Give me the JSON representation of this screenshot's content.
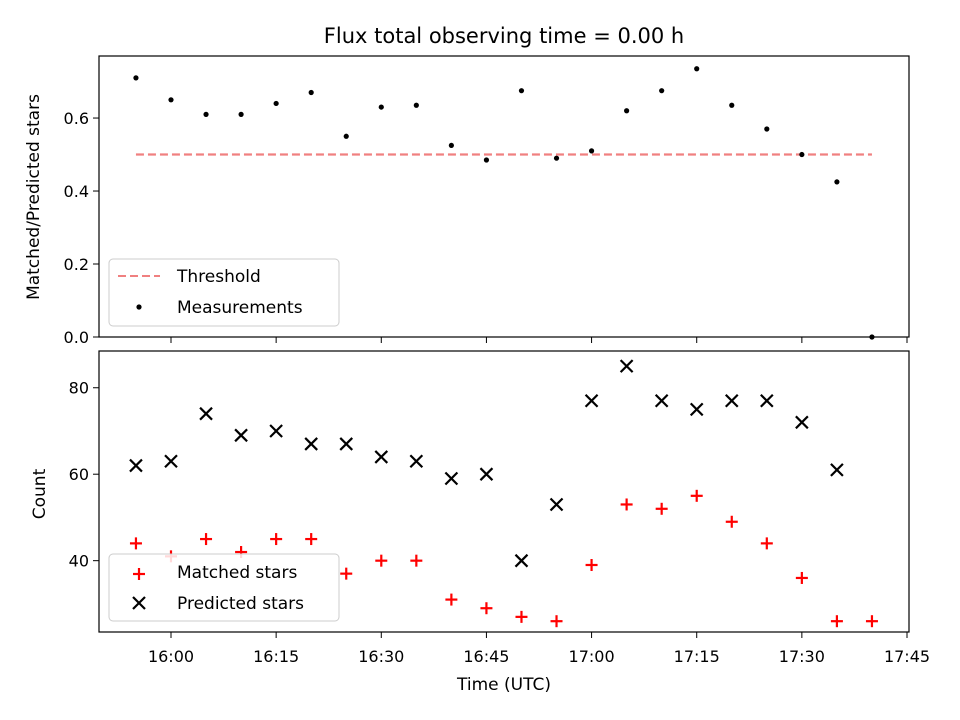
{
  "chart_data": [
    {
      "type": "scatter",
      "title": "Flux total observing time = 0.00 h",
      "xlabel": "",
      "ylabel": "Matched/Predicted stars",
      "x_ticks": [
        "16:00",
        "16:15",
        "16:30",
        "16:45",
        "17:00",
        "17:15",
        "17:30",
        "17:45"
      ],
      "y_ticks": [
        "0.0",
        "0.2",
        "0.4",
        "0.6"
      ],
      "ylim": [
        0.0,
        0.77
      ],
      "legend_position": "lower-left",
      "series": [
        {
          "name": "Threshold",
          "style": "dashed-line",
          "color": "#f08080",
          "x": [
            "15:55",
            "17:40"
          ],
          "values": [
            0.5,
            0.5
          ]
        },
        {
          "name": "Measurements",
          "style": "dot",
          "color": "#000000",
          "x": [
            "15:55",
            "16:00",
            "16:05",
            "16:10",
            "16:15",
            "16:20",
            "16:25",
            "16:30",
            "16:35",
            "16:40",
            "16:45",
            "16:50",
            "16:55",
            "17:00",
            "17:05",
            "17:10",
            "17:15",
            "17:20",
            "17:25",
            "17:30",
            "17:35",
            "17:40"
          ],
          "values": [
            0.71,
            0.65,
            0.61,
            0.61,
            0.64,
            0.67,
            0.55,
            0.63,
            0.635,
            0.525,
            0.485,
            0.675,
            0.49,
            0.51,
            0.62,
            0.675,
            0.735,
            0.635,
            0.57,
            0.5,
            0.425,
            0.0
          ]
        }
      ]
    },
    {
      "type": "scatter",
      "title": "",
      "xlabel": "Time (UTC)",
      "ylabel": "Count",
      "x_ticks": [
        "16:00",
        "16:15",
        "16:30",
        "16:45",
        "17:00",
        "17:15",
        "17:30",
        "17:45"
      ],
      "y_ticks": [
        "40",
        "60",
        "80"
      ],
      "ylim": [
        23.5,
        88.5
      ],
      "legend_position": "lower-left",
      "series": [
        {
          "name": "Matched stars",
          "marker": "plus",
          "color": "#ff0000",
          "x": [
            "15:55",
            "16:00",
            "16:05",
            "16:10",
            "16:15",
            "16:20",
            "16:25",
            "16:30",
            "16:35",
            "16:40",
            "16:45",
            "16:50",
            "16:55",
            "17:00",
            "17:05",
            "17:10",
            "17:15",
            "17:20",
            "17:25",
            "17:30",
            "17:35",
            "17:40"
          ],
          "values": [
            44,
            41,
            45,
            42,
            45,
            45,
            37,
            40,
            40,
            31,
            29,
            27,
            26,
            39,
            53,
            52,
            55,
            49,
            44,
            36,
            26,
            26
          ]
        },
        {
          "name": "Predicted stars",
          "marker": "x",
          "color": "#000000",
          "x": [
            "15:55",
            "16:00",
            "16:05",
            "16:10",
            "16:15",
            "16:20",
            "16:25",
            "16:30",
            "16:35",
            "16:40",
            "16:45",
            "16:50",
            "16:55",
            "17:00",
            "17:05",
            "17:10",
            "17:15",
            "17:20",
            "17:25",
            "17:30",
            "17:35"
          ],
          "values": [
            62,
            63,
            74,
            69,
            70,
            67,
            67,
            64,
            63,
            59,
            60,
            40,
            53,
            77,
            85,
            77,
            75,
            77,
            77,
            72,
            61
          ]
        }
      ]
    }
  ]
}
